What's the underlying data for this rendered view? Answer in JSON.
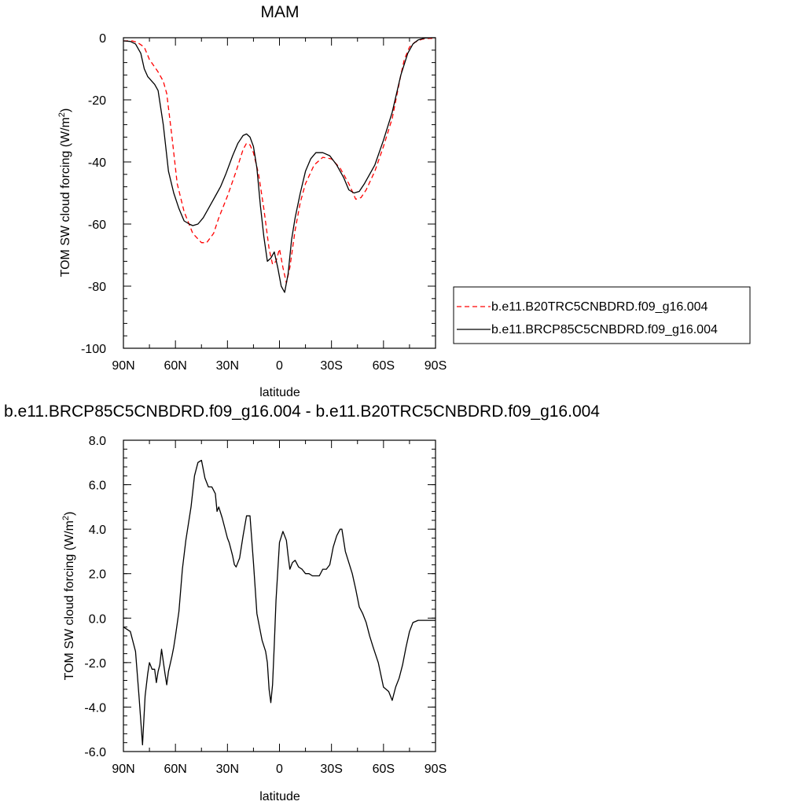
{
  "chart_data": [
    {
      "type": "line",
      "title": "MAM",
      "xlabel": "latitude",
      "ylabel": "TOM SW cloud forcing (W/m",
      "ylabel_sup": "2",
      "ylabel_tail": ")",
      "x_ticks": [
        "90N",
        "60N",
        "30N",
        "0",
        "30S",
        "60S",
        "90S"
      ],
      "x_tick_values": [
        90,
        60,
        30,
        0,
        -30,
        -60,
        -90
      ],
      "ylim": [
        -100,
        0
      ],
      "y_ticks": [
        "0",
        "-20",
        "-40",
        "-60",
        "-80",
        "-100"
      ],
      "y_tick_values": [
        0,
        -20,
        -40,
        -60,
        -80,
        -100
      ],
      "grid": false,
      "legend_placement": "right",
      "series": [
        {
          "name": "b.e11.B20TRC5CNBDRD.f09_g16.004",
          "color": "#ff0000",
          "dash": "dashed",
          "x": [
            90,
            85,
            82,
            78,
            75,
            70,
            67,
            65,
            62,
            59,
            55,
            50,
            45,
            42,
            38,
            35,
            30,
            25,
            21,
            19,
            17,
            15,
            12,
            9,
            6,
            4,
            2,
            0,
            -2,
            -4,
            -6,
            -9,
            -12,
            -15,
            -20,
            -25,
            -30,
            -35,
            -40,
            -44,
            -47,
            -50,
            -55,
            -60,
            -65,
            -70,
            -72,
            -75,
            -78,
            -82,
            -86,
            -90
          ],
          "y": [
            -1,
            -1,
            -1.5,
            -3,
            -7,
            -11,
            -14,
            -18,
            -32,
            -47,
            -56,
            -63,
            -66,
            -66,
            -63,
            -58,
            -51,
            -43,
            -36,
            -34,
            -34.5,
            -37,
            -44,
            -55,
            -68,
            -73,
            -72,
            -68,
            -74,
            -79,
            -74,
            -62,
            -53,
            -47,
            -41,
            -38.5,
            -39,
            -42,
            -47,
            -52,
            -51.5,
            -49,
            -43,
            -35,
            -26,
            -12,
            -7,
            -3,
            -1.5,
            -0.5,
            -0.2,
            -0.2
          ]
        },
        {
          "name": "b.e11.BRCP85C5CNBDRD.f09_g16.004",
          "color": "#000000",
          "dash": "solid",
          "x": [
            90,
            86,
            83,
            80,
            78,
            76,
            72,
            70,
            67,
            64,
            61,
            58,
            55,
            52,
            50,
            47,
            44,
            41,
            37,
            34,
            31,
            27,
            24,
            21,
            19,
            17,
            15,
            13,
            11,
            9,
            7,
            5,
            3,
            1,
            -1,
            -3,
            -5,
            -7,
            -9,
            -12,
            -15,
            -18,
            -21,
            -25,
            -29,
            -33,
            -37,
            -40,
            -43,
            -46,
            -49,
            -55,
            -60,
            -65,
            -70,
            -74,
            -77,
            -80,
            -84,
            -88,
            -90
          ],
          "y": [
            -1,
            -1.2,
            -2,
            -5,
            -10,
            -12.5,
            -15,
            -17,
            -28,
            -43,
            -50,
            -55,
            -59,
            -60,
            -60.5,
            -60,
            -58,
            -55,
            -51,
            -48,
            -44,
            -38,
            -34,
            -31.5,
            -31,
            -32,
            -35,
            -42,
            -54,
            -64,
            -72,
            -71,
            -69,
            -74,
            -80,
            -82,
            -76,
            -65,
            -58,
            -50,
            -43,
            -39,
            -37,
            -37,
            -38,
            -41,
            -45,
            -49,
            -50,
            -49.5,
            -47,
            -41,
            -33,
            -24,
            -12,
            -5,
            -2,
            -0.7,
            -0.1,
            0,
            0
          ]
        }
      ]
    },
    {
      "type": "line",
      "title": "b.e11.BRCP85C5CNBDRD.f09_g16.004 - b.e11.B20TRC5CNBDRD.f09_g16.004",
      "xlabel": "latitude",
      "ylabel": "TOM SW cloud forcing (W/m",
      "ylabel_sup": "2",
      "ylabel_tail": ")",
      "x_ticks": [
        "90N",
        "60N",
        "30N",
        "0",
        "30S",
        "60S",
        "90S"
      ],
      "x_tick_values": [
        90,
        60,
        30,
        0,
        -30,
        -60,
        -90
      ],
      "ylim": [
        -6,
        8
      ],
      "y_ticks": [
        "8.0",
        "6.0",
        "4.0",
        "2.0",
        "0.0",
        "-2.0",
        "-4.0",
        "-6.0"
      ],
      "y_tick_values": [
        8,
        6,
        4,
        2,
        0,
        -2,
        -4,
        -6
      ],
      "grid": false,
      "series": [
        {
          "name": "",
          "color": "#000000",
          "dash": "solid",
          "x": [
            90,
            86,
            83,
            81,
            79,
            77.5,
            76,
            75,
            73.5,
            72,
            71,
            70,
            69,
            68,
            66,
            65,
            64,
            62,
            61,
            60,
            58,
            56,
            54,
            51,
            49,
            47,
            45,
            43,
            41,
            39,
            37,
            36,
            35,
            33,
            31,
            30,
            29,
            28,
            27,
            26,
            25,
            23,
            21,
            19,
            17,
            15,
            13,
            10,
            8,
            7,
            6,
            5,
            4,
            3,
            2,
            0,
            -2,
            -4,
            -5,
            -6,
            -7.5,
            -9,
            -11,
            -13,
            -15,
            -17,
            -19,
            -21,
            -23,
            -25,
            -27,
            -29,
            -31,
            -33,
            -35,
            -36,
            -38,
            -40,
            -42,
            -44,
            -46,
            -48,
            -50,
            -52,
            -54,
            -57,
            -60,
            -63,
            -65,
            -67,
            -69,
            -71,
            -73,
            -75,
            -77,
            -80,
            -84,
            -88,
            -90
          ],
          "y": [
            -0.4,
            -0.6,
            -1.5,
            -3.5,
            -5.7,
            -3.5,
            -2.5,
            -2,
            -2.3,
            -2.3,
            -2.9,
            -2.4,
            -2.1,
            -1.4,
            -2.5,
            -3,
            -2.4,
            -1.7,
            -1.3,
            -0.8,
            0.3,
            2.2,
            3.5,
            5,
            6.4,
            7,
            7.1,
            6.3,
            5.9,
            5.9,
            5.6,
            4.8,
            5,
            4.5,
            3.9,
            3.6,
            3.4,
            3.1,
            2.8,
            2.4,
            2.3,
            2.7,
            3.7,
            4.6,
            4.6,
            2.5,
            0.2,
            -1,
            -1.5,
            -2,
            -3.2,
            -3.8,
            -3,
            -1.2,
            0.8,
            3.4,
            3.9,
            3.5,
            2.8,
            2.2,
            2.5,
            2.6,
            2.3,
            2.2,
            2,
            2,
            1.9,
            1.9,
            1.9,
            2.2,
            2.2,
            2.4,
            3.2,
            3.7,
            4,
            4,
            3,
            2.5,
            2,
            1.3,
            0.5,
            0.2,
            -0.2,
            -0.8,
            -1.3,
            -2,
            -3.1,
            -3.3,
            -3.7,
            -3.1,
            -2.7,
            -2.1,
            -1.3,
            -0.6,
            -0.2,
            -0.1,
            -0.1,
            -0.1,
            -0.1
          ]
        }
      ]
    }
  ]
}
